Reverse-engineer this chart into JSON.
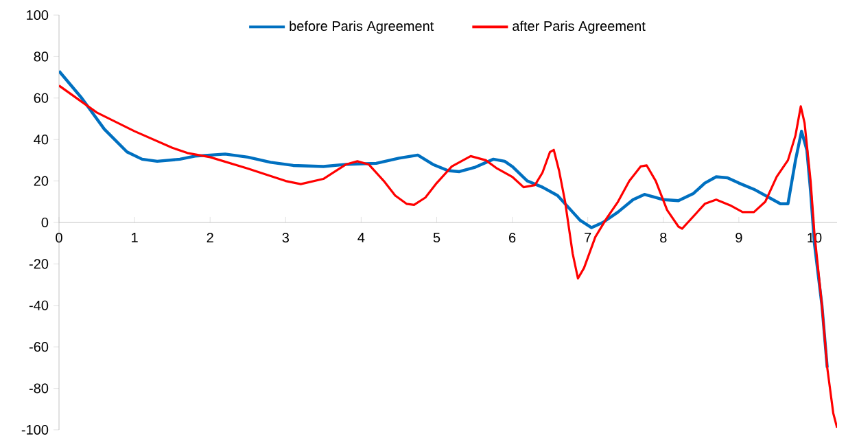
{
  "chart_data": {
    "type": "line",
    "xlim": [
      0,
      10.3
    ],
    "ylim": [
      -100,
      100
    ],
    "xticks": [
      0,
      1,
      2,
      3,
      4,
      5,
      6,
      7,
      8,
      9,
      10
    ],
    "yticks": [
      -100,
      -80,
      -60,
      -40,
      -20,
      0,
      20,
      40,
      60,
      80,
      100
    ],
    "grid": false,
    "legend": "top",
    "marker": "none",
    "line_style": "solid",
    "series": [
      {
        "name": "before Paris Agreement",
        "color": "#0070c0",
        "x": [
          0,
          0.3,
          0.6,
          0.9,
          1.1,
          1.3,
          1.6,
          1.8,
          2.2,
          2.5,
          2.8,
          3.1,
          3.5,
          3.8,
          4.2,
          4.5,
          4.75,
          4.95,
          5.15,
          5.3,
          5.5,
          5.75,
          5.9,
          6.0,
          6.2,
          6.4,
          6.6,
          6.8,
          6.9,
          7.05,
          7.2,
          7.4,
          7.6,
          7.75,
          7.9,
          8.0,
          8.2,
          8.4,
          8.55,
          8.7,
          8.85,
          9.0,
          9.2,
          9.4,
          9.55,
          9.65,
          9.75,
          9.83,
          9.9,
          9.95,
          10.0,
          10.1,
          10.17
        ],
        "values": [
          73,
          60,
          45,
          34,
          30.5,
          29.5,
          30.5,
          32,
          33,
          31.5,
          29,
          27.5,
          27,
          28,
          28.5,
          31,
          32.5,
          28,
          25,
          24.5,
          26.5,
          30.5,
          29.5,
          27,
          20,
          17,
          13,
          5,
          1,
          -2.5,
          0,
          5,
          11,
          13.5,
          12,
          11,
          10.5,
          14,
          19,
          22,
          21.5,
          19,
          16,
          12,
          9,
          9,
          30,
          44,
          35,
          15,
          -10,
          -40,
          -70
        ]
      },
      {
        "name": "after Paris Agreement",
        "color": "#ff0000",
        "x": [
          0,
          0.5,
          1.0,
          1.5,
          1.7,
          2.0,
          2.5,
          3.0,
          3.2,
          3.5,
          3.8,
          3.95,
          4.1,
          4.3,
          4.45,
          4.6,
          4.7,
          4.85,
          5.0,
          5.2,
          5.45,
          5.65,
          5.8,
          6.0,
          6.15,
          6.3,
          6.4,
          6.5,
          6.55,
          6.62,
          6.7,
          6.8,
          6.87,
          6.95,
          7.1,
          7.25,
          7.4,
          7.55,
          7.7,
          7.78,
          7.9,
          8.05,
          8.2,
          8.25,
          8.4,
          8.55,
          8.7,
          8.9,
          9.05,
          9.2,
          9.35,
          9.5,
          9.65,
          9.75,
          9.82,
          9.87,
          9.95,
          10.0,
          10.1,
          10.17,
          10.25,
          10.3
        ],
        "values": [
          66,
          53,
          44,
          36,
          33.5,
          31.5,
          26,
          20,
          18.5,
          21,
          28,
          29.5,
          28,
          20,
          13,
          9,
          8.5,
          12,
          19,
          27,
          32,
          30,
          26,
          22,
          17,
          18,
          24,
          34,
          35,
          25,
          10,
          -15,
          -27,
          -22,
          -7,
          2,
          10,
          20,
          27,
          27.5,
          20,
          6,
          -2,
          -3,
          3,
          9,
          11,
          8,
          5,
          5,
          10,
          22,
          30,
          42,
          56,
          48,
          20,
          -5,
          -40,
          -70,
          -92,
          -99
        ]
      }
    ]
  }
}
